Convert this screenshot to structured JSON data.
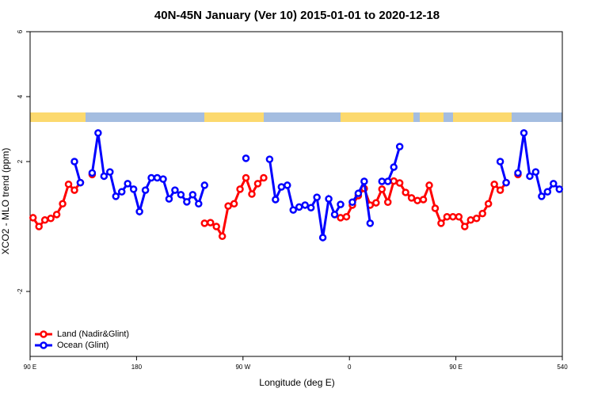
{
  "chart_data": {
    "type": "line",
    "title": "40N-45N January (Ver 10)   2015-01-01 to 2020-12-18",
    "x_label": "Longitude (deg E)",
    "y_label": "XCO2 - MLO trend (ppm)",
    "xlim": [
      90,
      540
    ],
    "xticks": [
      {
        "value": 90,
        "label": "90 E"
      },
      180,
      {
        "value": 270,
        "label": "90 W"
      },
      {
        "value": 360,
        "label": "0"
      },
      {
        "value": 450,
        "label": "90 E"
      },
      540
    ],
    "ylim": [
      -4,
      6
    ],
    "yticks": [
      -2,
      2,
      4,
      6
    ],
    "legend": "bottom-left",
    "series": [
      {
        "name": "Land (Nadir&Glint)",
        "color": "#ff0000",
        "x": [
          92.5,
          97.5,
          102.5,
          107.5,
          112.5,
          117.5,
          122.5,
          127.5,
          132.5,
          null,
          142.5,
          null,
          237.5,
          242.5,
          247.5,
          252.5,
          257.5,
          262.5,
          267.5,
          272.5,
          277.5,
          282.5,
          287.5,
          null,
          352.5,
          357.5,
          362.5,
          367.5,
          372.5,
          377.5,
          382.5,
          387.5,
          392.5,
          397.5,
          402.5,
          407.5,
          412.5,
          417.5,
          422.5,
          427.5,
          432.5,
          437.5,
          442.5,
          447.5,
          452.5,
          457.5,
          462.5,
          467.5,
          472.5,
          477.5,
          482.5,
          487.5,
          492.5,
          null,
          502.5
        ],
        "values": [
          0.27,
          0.0,
          0.2,
          0.25,
          0.37,
          0.7,
          1.3,
          1.12,
          1.35,
          null,
          1.6,
          null,
          0.1,
          0.12,
          0.0,
          -0.3,
          0.63,
          0.7,
          1.15,
          1.5,
          1.0,
          1.32,
          1.5,
          null,
          0.27,
          0.3,
          0.66,
          0.95,
          1.17,
          0.66,
          0.73,
          1.15,
          0.75,
          1.4,
          1.34,
          1.05,
          0.88,
          0.8,
          0.83,
          1.27,
          0.56,
          0.1,
          0.3,
          0.3,
          0.3,
          0.0,
          0.2,
          0.25,
          0.4,
          0.7,
          1.3,
          1.12,
          1.35,
          null,
          1.6
        ]
      },
      {
        "name": "Ocean (Glint)",
        "color": "#0000ff",
        "x": [
          127.5,
          132.5,
          null,
          142.5,
          147.5,
          152.5,
          157.5,
          162.5,
          167.5,
          172.5,
          177.5,
          182.5,
          187.5,
          192.5,
          197.5,
          202.5,
          207.5,
          212.5,
          217.5,
          222.5,
          227.5,
          232.5,
          237.5,
          null,
          272.5,
          null,
          292.5,
          297.5,
          302.5,
          307.5,
          312.5,
          317.5,
          322.5,
          327.5,
          332.5,
          337.5,
          342.5,
          347.5,
          352.5,
          null,
          362.5,
          367.5,
          372.5,
          377.5,
          null,
          387.5,
          392.5,
          397.5,
          402.5,
          null,
          487.5,
          492.5,
          null,
          502.5,
          507.5,
          512.5,
          517.5,
          522.5,
          527.5,
          532.5,
          537.5
        ],
        "values": [
          2.0,
          1.35,
          null,
          1.65,
          2.88,
          1.55,
          1.68,
          0.93,
          1.07,
          1.32,
          1.15,
          0.46,
          1.12,
          1.5,
          1.5,
          1.46,
          0.85,
          1.12,
          0.98,
          0.76,
          0.98,
          0.7,
          1.27,
          null,
          2.1,
          null,
          2.07,
          0.83,
          1.22,
          1.27,
          0.51,
          0.6,
          0.66,
          0.58,
          0.9,
          -0.34,
          0.85,
          0.37,
          0.68,
          null,
          0.75,
          1.02,
          1.39,
          0.1,
          null,
          1.39,
          1.39,
          1.83,
          2.46,
          null,
          2.0,
          1.35,
          null,
          1.65,
          2.88,
          1.55,
          1.68,
          0.93,
          1.07,
          1.32,
          1.15
        ]
      }
    ]
  }
}
